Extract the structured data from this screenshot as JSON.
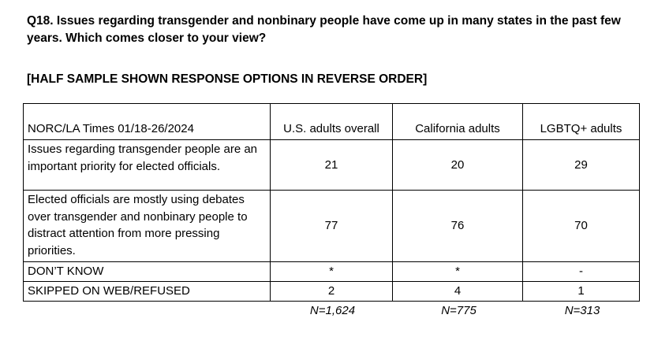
{
  "question": {
    "text": "Q18. Issues regarding transgender and nonbinary people have come up in many states in the past few years. Which comes closer to your view?",
    "note": "[HALF SAMPLE SHOWN RESPONSE OPTIONS IN REVERSE ORDER]"
  },
  "table": {
    "header": [
      "NORC/LA Times 01/18-26/2024",
      "U.S. adults overall",
      "California adults",
      "LGBTQ+ adults"
    ],
    "rows": [
      {
        "label": "Issues regarding transgender people are an important priority for elected officials.",
        "values": [
          "21",
          "20",
          "29"
        ]
      },
      {
        "label": "Elected officials are mostly using debates over transgender and nonbinary people to distract attention from more pressing priorities.",
        "values": [
          "77",
          "76",
          "70"
        ]
      },
      {
        "label": "DON’T KNOW",
        "values": [
          "*",
          "*",
          "-"
        ]
      },
      {
        "label": "SKIPPED ON WEB/REFUSED",
        "values": [
          "2",
          "4",
          "1"
        ]
      }
    ],
    "sample_sizes": [
      "N=1,624",
      "N=775",
      "N=313"
    ]
  },
  "colors": {
    "text": "#000000",
    "border": "#000000",
    "background": "#ffffff"
  }
}
